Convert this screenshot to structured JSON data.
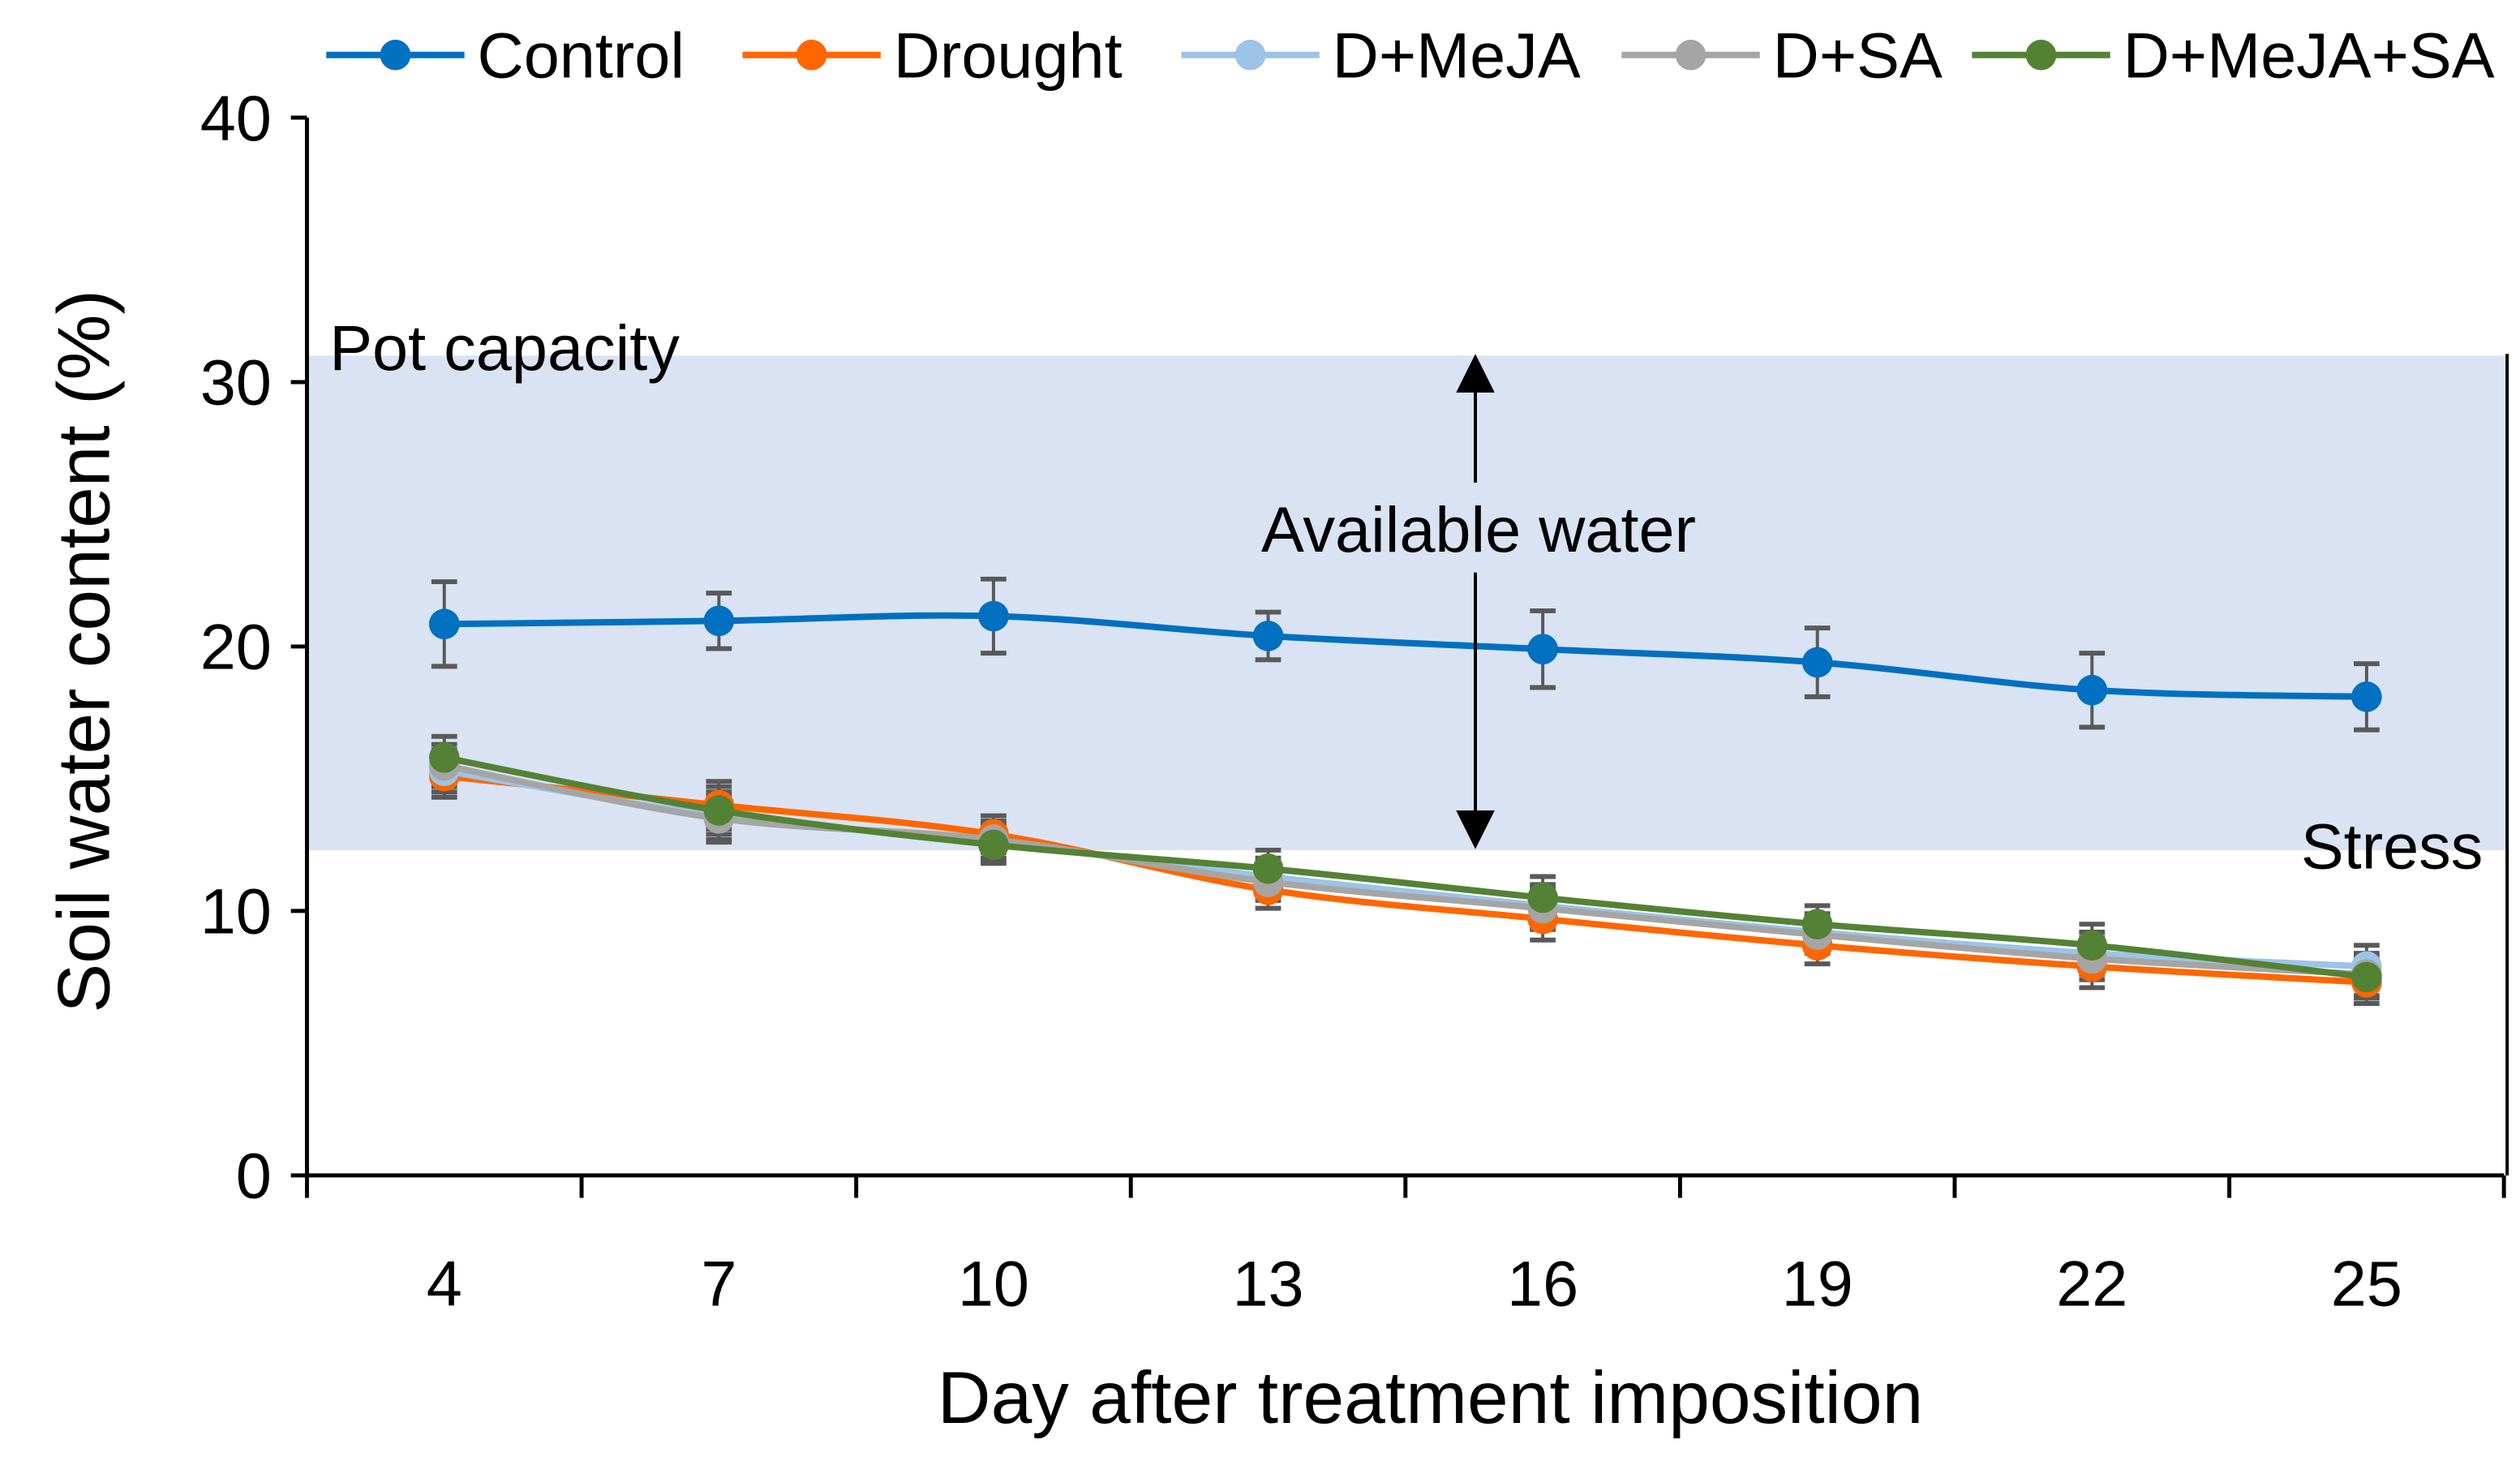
{
  "chart_data": {
    "type": "line",
    "title": "",
    "xlabel": "Day after treatment imposition",
    "ylabel": "Soil water content (%)",
    "categories": [
      "4",
      "7",
      "10",
      "13",
      "16",
      "19",
      "22",
      "25"
    ],
    "ylim": [
      0,
      40
    ],
    "yticks": [
      "0",
      "10",
      "20",
      "30",
      "40"
    ],
    "grid": false,
    "legend_position": "top",
    "error_bars": true,
    "series": [
      {
        "name": "Control",
        "color": "#0070C0",
        "values": [
          20.85,
          20.97,
          21.15,
          20.4,
          19.9,
          19.4,
          18.35,
          18.1
        ],
        "errors": [
          1.6,
          1.05,
          1.4,
          0.9,
          1.45,
          1.3,
          1.4,
          1.25
        ]
      },
      {
        "name": "Drought",
        "color": "#FF6600",
        "values": [
          15.1,
          14.0,
          12.9,
          10.8,
          9.7,
          8.7,
          7.9,
          7.3
        ],
        "errors": [
          0.8,
          0.9,
          0.7,
          0.7,
          0.8,
          0.7,
          0.8,
          0.8
        ]
      },
      {
        "name": "D+MeJA",
        "color": "#9DC3E6",
        "values": [
          15.3,
          13.6,
          12.6,
          11.3,
          10.2,
          9.2,
          8.4,
          7.9
        ],
        "errors": [
          0.8,
          0.9,
          0.7,
          0.7,
          0.8,
          0.7,
          0.8,
          0.8
        ]
      },
      {
        "name": "D+SA",
        "color": "#A5A5A5",
        "values": [
          15.5,
          13.5,
          12.7,
          11.1,
          10.1,
          9.1,
          8.2,
          7.6
        ],
        "errors": [
          0.8,
          0.9,
          0.7,
          0.7,
          0.8,
          0.7,
          0.8,
          0.8
        ]
      },
      {
        "name": "D+MeJA+SA",
        "color": "#548235",
        "values": [
          15.8,
          13.8,
          12.5,
          11.6,
          10.5,
          9.5,
          8.7,
          7.5
        ],
        "errors": [
          0.8,
          0.9,
          0.7,
          0.7,
          0.8,
          0.7,
          0.8,
          0.8
        ]
      }
    ],
    "band": {
      "from": 12.3,
      "to": 31.0,
      "color": "#DAE3F3"
    },
    "annotations": {
      "pot_capacity": "Pot capacity",
      "available_water": "Available water",
      "stress": "Stress"
    }
  }
}
